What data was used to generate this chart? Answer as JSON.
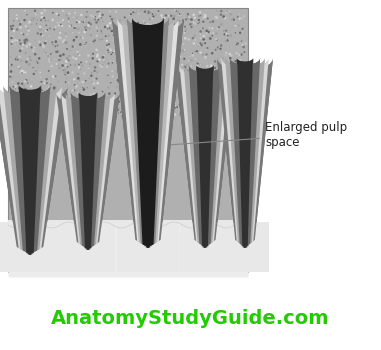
{
  "annotation_text": "Enlarged pulp\nspace",
  "website_text": "AnatomyStudyGuide.com",
  "website_color": "#22cc00",
  "website_fontsize": 14,
  "bg_color": "#ffffff",
  "annotation_color": "#888888",
  "annotation_fontsize": 8.5
}
